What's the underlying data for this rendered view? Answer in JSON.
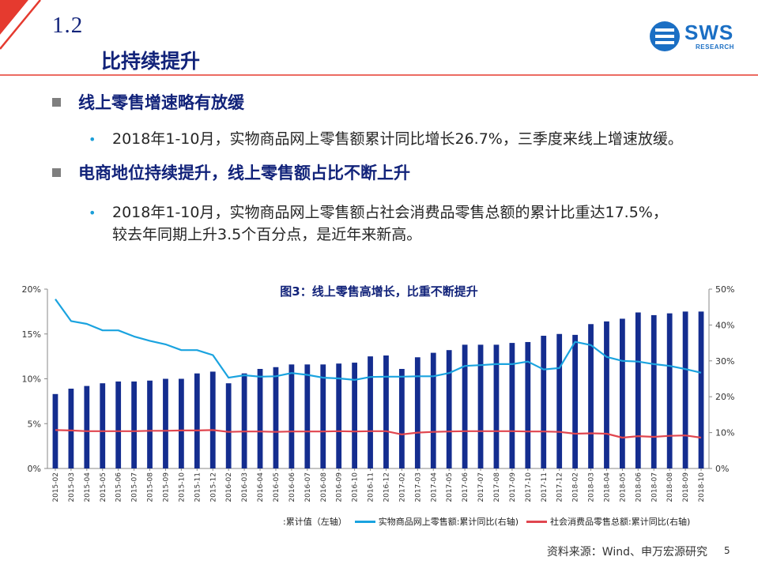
{
  "header": {
    "section_number": "1.2",
    "section_title": "比持续提升",
    "logo_text": "SWS",
    "logo_subtext": "RESEARCH",
    "accent_color": "#e53a2f",
    "brand_color": "#12237a"
  },
  "points": [
    {
      "heading": "线上零售增速略有放缓",
      "bullets": [
        "2018年1-10月，实物商品网上零售额累计同比增长26.7%，三季度来线上增速放缓。"
      ]
    },
    {
      "heading": "电商地位持续提升，线上零售额占比不断上升",
      "bullets": [
        "2018年1-10月，实物商品网上零售额占社会消费品零售总额的累计比重达17.5%，",
        "较去年同期上升3.5个百分点，是近年来新高。"
      ]
    }
  ],
  "chart_data": {
    "type": "bar",
    "title": "图3：线上零售高增长，比重不断提升",
    "categories": [
      "2015-02",
      "2015-03",
      "2015-04",
      "2015-05",
      "2015-06",
      "2015-07",
      "2015-08",
      "2015-09",
      "2015-10",
      "2015-11",
      "2015-12",
      "2016-02",
      "2016-03",
      "2016-04",
      "2016-05",
      "2016-06",
      "2016-07",
      "2016-08",
      "2016-09",
      "2016-10",
      "2016-11",
      "2016-12",
      "2017-02",
      "2017-03",
      "2017-04",
      "2017-05",
      "2017-06",
      "2017-07",
      "2017-08",
      "2017-09",
      "2017-10",
      "2017-11",
      "2017-12",
      "2018-02",
      "2018-03",
      "2018-04",
      "2018-05",
      "2018-06",
      "2018-07",
      "2018-08",
      "2018-09",
      "2018-10"
    ],
    "series": [
      {
        "name": ":累计值（左轴）",
        "axis": "left",
        "kind": "bar",
        "color": "#142d8f",
        "values": [
          8.3,
          8.9,
          9.2,
          9.5,
          9.7,
          9.7,
          9.8,
          10.0,
          10.0,
          10.6,
          10.8,
          9.5,
          10.6,
          11.1,
          11.3,
          11.6,
          11.6,
          11.6,
          11.7,
          11.8,
          12.5,
          12.6,
          11.1,
          12.4,
          12.9,
          13.2,
          13.8,
          13.8,
          13.8,
          14.0,
          14.1,
          14.8,
          15.0,
          14.9,
          16.1,
          16.4,
          16.7,
          17.4,
          17.1,
          17.3,
          17.5,
          17.5
        ]
      },
      {
        "name": "实物商品网上零售额:累计同比(右轴)",
        "axis": "right",
        "kind": "line",
        "color": "#1aa3df",
        "values": [
          47.2,
          41.1,
          40.3,
          38.5,
          38.5,
          36.8,
          35.6,
          34.6,
          33.0,
          33.0,
          31.6,
          25.3,
          26.0,
          25.6,
          25.7,
          26.6,
          26.1,
          25.3,
          25.1,
          24.7,
          25.5,
          25.6,
          25.6,
          25.7,
          25.7,
          26.6,
          28.6,
          28.8,
          29.1,
          29.1,
          29.8,
          27.6,
          28.0,
          35.3,
          34.4,
          31.1,
          30.0,
          29.8,
          29.1,
          28.6,
          27.7,
          26.7
        ]
      },
      {
        "name": "社会消费品零售总额:累计同比(右轴)",
        "axis": "right",
        "kind": "line",
        "color": "#e0464f",
        "values": [
          10.7,
          10.6,
          10.4,
          10.4,
          10.4,
          10.4,
          10.5,
          10.5,
          10.6,
          10.6,
          10.7,
          10.2,
          10.3,
          10.3,
          10.2,
          10.3,
          10.3,
          10.3,
          10.4,
          10.3,
          10.4,
          10.4,
          9.5,
          10.0,
          10.2,
          10.3,
          10.4,
          10.4,
          10.4,
          10.4,
          10.3,
          10.3,
          10.2,
          9.7,
          9.8,
          9.7,
          8.6,
          9.0,
          8.8,
          9.1,
          9.2,
          8.6
        ]
      }
    ],
    "left_axis": {
      "ylim": [
        0,
        20
      ],
      "ticks": [
        "0%",
        "5%",
        "10%",
        "15%",
        "20%"
      ],
      "tick_values": [
        0,
        5,
        10,
        15,
        20
      ]
    },
    "right_axis": {
      "ylim": [
        0,
        50
      ],
      "ticks": [
        "0%",
        "10%",
        "20%",
        "30%",
        "40%",
        "50%"
      ],
      "tick_values": [
        0,
        10,
        20,
        30,
        40,
        50
      ]
    },
    "grid": false,
    "legend_placement": "bottom"
  },
  "footer": {
    "source": "资料来源：Wind、申万宏源研究",
    "page_number": "5"
  }
}
